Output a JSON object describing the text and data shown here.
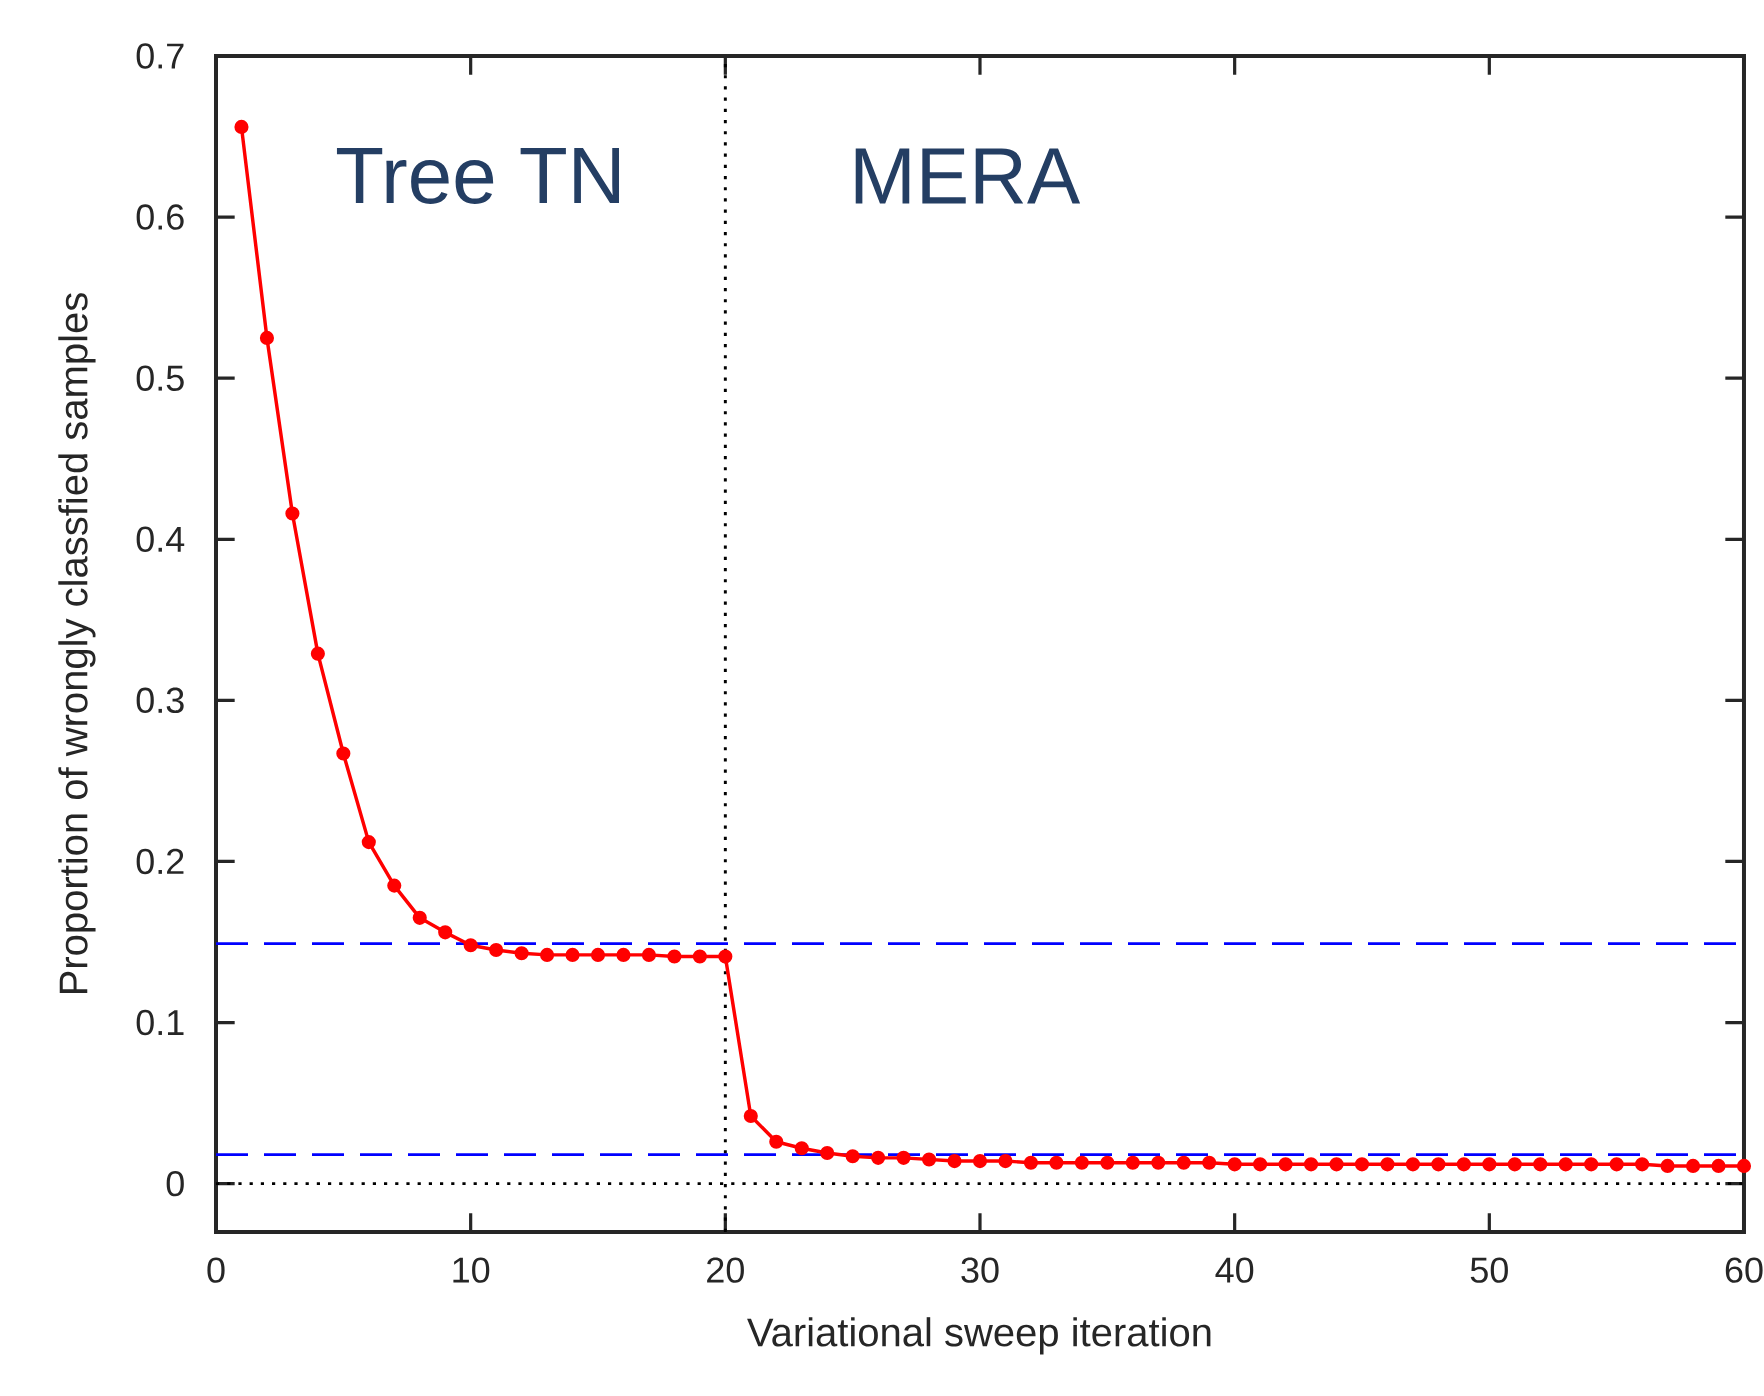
{
  "chart_data": {
    "type": "line",
    "xlabel": "Variational sweep iteration",
    "ylabel": "Proportion of wrongly classfied samples",
    "annotations": [
      "Tree TN",
      "MERA"
    ],
    "x": [
      1,
      2,
      3,
      4,
      5,
      6,
      7,
      8,
      9,
      10,
      11,
      12,
      13,
      14,
      15,
      16,
      17,
      18,
      19,
      20,
      21,
      22,
      23,
      24,
      25,
      26,
      27,
      28,
      29,
      30,
      31,
      32,
      33,
      34,
      35,
      36,
      37,
      38,
      39,
      40,
      41,
      42,
      43,
      44,
      45,
      46,
      47,
      48,
      49,
      50,
      51,
      52,
      53,
      54,
      55,
      56,
      57,
      58,
      59,
      60
    ],
    "series": [
      {
        "color": "#ff0000",
        "values": [
          0.656,
          0.525,
          0.416,
          0.329,
          0.267,
          0.212,
          0.185,
          0.165,
          0.156,
          0.148,
          0.145,
          0.143,
          0.142,
          0.142,
          0.142,
          0.142,
          0.142,
          0.141,
          0.141,
          0.141,
          0.042,
          0.026,
          0.022,
          0.019,
          0.017,
          0.016,
          0.016,
          0.015,
          0.014,
          0.014,
          0.014,
          0.013,
          0.013,
          0.013,
          0.013,
          0.013,
          0.013,
          0.013,
          0.013,
          0.012,
          0.012,
          0.012,
          0.012,
          0.012,
          0.012,
          0.012,
          0.012,
          0.012,
          0.012,
          0.012,
          0.012,
          0.012,
          0.012,
          0.012,
          0.012,
          0.012,
          0.011,
          0.011,
          0.011,
          0.011
        ]
      }
    ],
    "marker": "circle",
    "line_style": "solid",
    "xlim": [
      0,
      60
    ],
    "ylim": [
      -0.03,
      0.7
    ],
    "xticks": [
      0,
      10,
      20,
      30,
      40,
      50,
      60
    ],
    "yticks": [
      0,
      0.1,
      0.2,
      0.3,
      0.4,
      0.5,
      0.6,
      0.7
    ],
    "ref_lines": [
      {
        "axis": "x",
        "value": 20,
        "color": "#000000",
        "line_style": "dotted"
      },
      {
        "axis": "y",
        "value": 0,
        "color": "#000000",
        "line_style": "dotted"
      },
      {
        "axis": "y",
        "value": 0.149,
        "color": "#0000ff",
        "line_style": "dashed"
      },
      {
        "axis": "y",
        "value": 0.018,
        "color": "#0000ff",
        "line_style": "dashed"
      }
    ]
  }
}
